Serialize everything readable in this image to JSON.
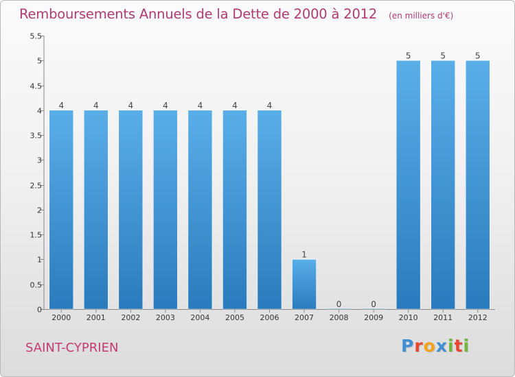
{
  "title": "Remboursements Annuels de la Dette de 2000 à 2012",
  "subtitle": "(en milliers d'€)",
  "commune": "SAINT-CYPRIEN",
  "logo": {
    "text": "Proxiti",
    "colors": [
      "#3f8fd2",
      "#e8472f",
      "#f3a21c",
      "#3f8fd2",
      "#6fb63c",
      "#e8472f",
      "#6fb63c"
    ]
  },
  "colors": {
    "bar_top": "#5aaee8",
    "bar_bottom": "#2a7bbd",
    "title": "#b03a72"
  },
  "chart_data": {
    "type": "bar",
    "title": "Remboursements Annuels de la Dette de 2000 à 2012",
    "subtitle": "(en milliers d'€)",
    "xlabel": "",
    "ylabel": "",
    "categories": [
      "2000",
      "2001",
      "2002",
      "2003",
      "2004",
      "2005",
      "2006",
      "2007",
      "2008",
      "2009",
      "2010",
      "2011",
      "2012"
    ],
    "values": [
      4,
      4,
      4,
      4,
      4,
      4,
      4,
      1,
      0,
      0,
      5,
      5,
      5
    ],
    "data_labels": [
      "4",
      "4",
      "4",
      "4",
      "4",
      "4",
      "4",
      "1",
      "0",
      "0",
      "5",
      "5",
      "5"
    ],
    "ylim": [
      0,
      5.5
    ],
    "yticks": [
      0,
      0.5,
      1,
      1.5,
      2,
      2.5,
      3,
      3.5,
      4,
      4.5,
      5,
      5.5
    ],
    "ytick_labels": [
      "0",
      "0.5",
      "1",
      "1.5",
      "2",
      "2.5",
      "3",
      "3.5",
      "4",
      "4.5",
      "5",
      "5.5"
    ],
    "grid": false,
    "legend": "none"
  }
}
